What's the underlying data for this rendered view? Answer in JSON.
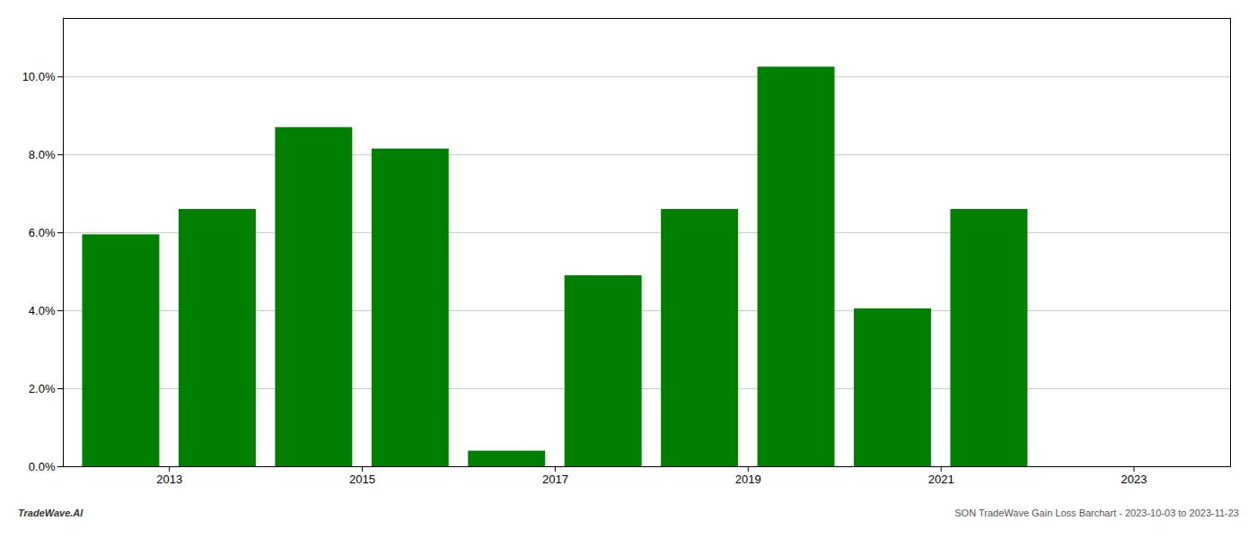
{
  "chart_data": {
    "type": "bar",
    "x": [
      2013,
      2014,
      2015,
      2016,
      2017,
      2018,
      2019,
      2020,
      2021,
      2022
    ],
    "values": [
      0.0595,
      0.066,
      0.087,
      0.0815,
      0.004,
      0.049,
      0.066,
      0.1025,
      0.0405,
      0.066
    ],
    "color": "#008000",
    "xlim": [
      2012.4,
      2024.5
    ],
    "xticks": [
      {
        "value": 2013.5,
        "label": "2013"
      },
      {
        "value": 2015.5,
        "label": "2015"
      },
      {
        "value": 2017.5,
        "label": "2017"
      },
      {
        "value": 2019.5,
        "label": "2019"
      },
      {
        "value": 2021.5,
        "label": "2021"
      },
      {
        "value": 2023.5,
        "label": "2023"
      }
    ],
    "ylim": [
      0,
      0.115
    ],
    "yticks": [
      {
        "value": 0.0,
        "label": "0.0%"
      },
      {
        "value": 0.02,
        "label": "2.0%"
      },
      {
        "value": 0.04,
        "label": "4.0%"
      },
      {
        "value": 0.06,
        "label": "6.0%"
      },
      {
        "value": 0.08,
        "label": "8.0%"
      },
      {
        "value": 0.1,
        "label": "10.0%"
      }
    ],
    "grid": true,
    "annotations": [
      "TradeWave.AI",
      "SON TradeWave Gain Loss Barchart - 2023-10-03 to 2023-11-23"
    ]
  }
}
